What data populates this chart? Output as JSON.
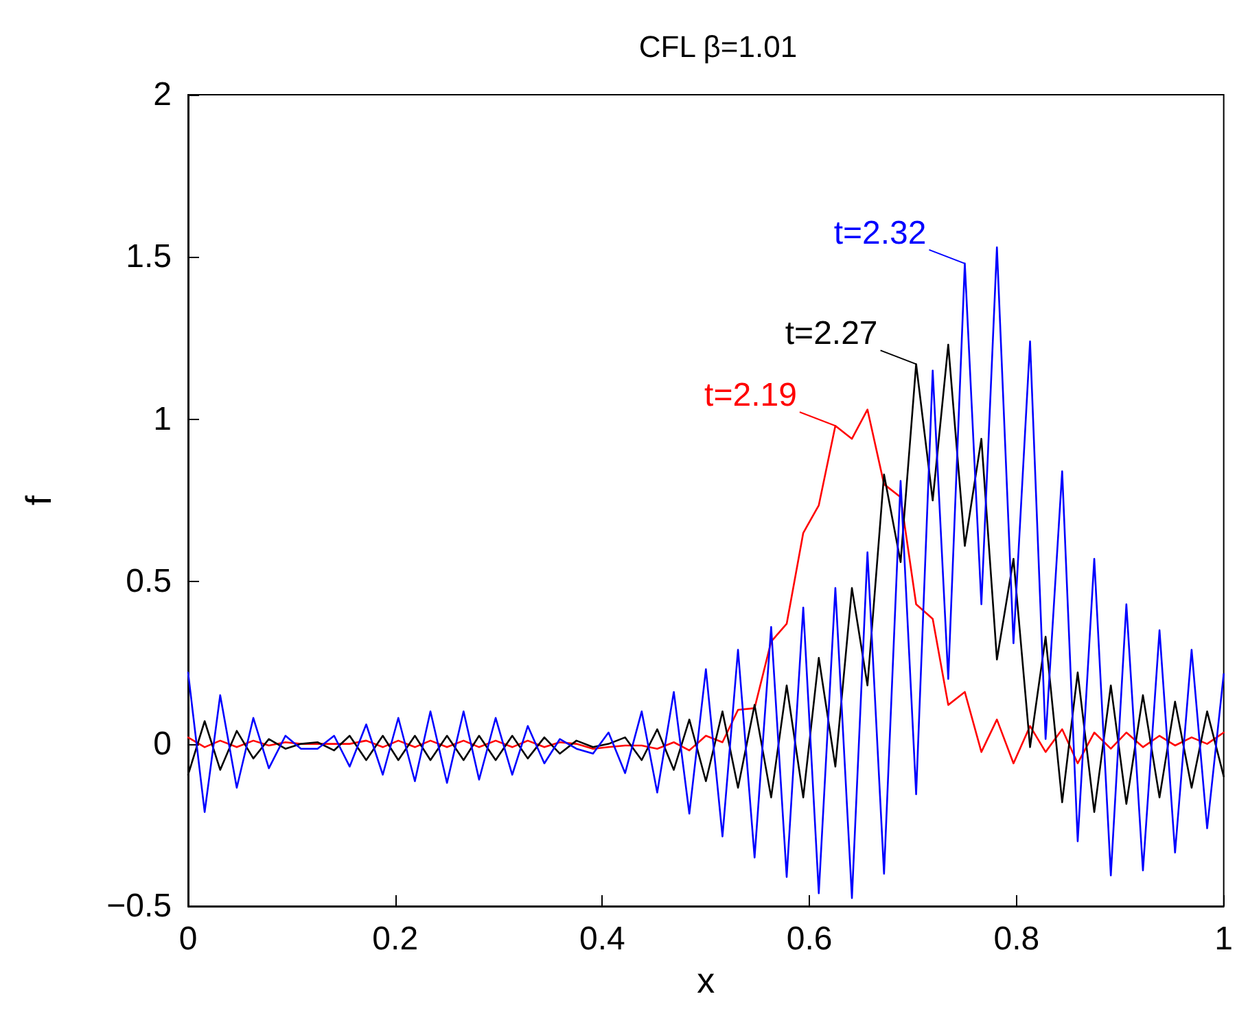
{
  "chart_data": {
    "type": "line",
    "title": "CFL β=1.01",
    "xlabel": "x",
    "ylabel": "f",
    "x": [
      0,
      0.016,
      0.031,
      0.047,
      0.063,
      0.078,
      0.094,
      0.109,
      0.125,
      0.141,
      0.156,
      0.172,
      0.188,
      0.203,
      0.219,
      0.234,
      0.25,
      0.266,
      0.281,
      0.297,
      0.313,
      0.328,
      0.344,
      0.359,
      0.375,
      0.391,
      0.406,
      0.422,
      0.438,
      0.453,
      0.469,
      0.484,
      0.5,
      0.516,
      0.531,
      0.547,
      0.563,
      0.578,
      0.594,
      0.609,
      0.625,
      0.641,
      0.656,
      0.672,
      0.688,
      0.703,
      0.719,
      0.734,
      0.75,
      0.766,
      0.781,
      0.797,
      0.813,
      0.828,
      0.844,
      0.859,
      0.875,
      0.891,
      0.906,
      0.922,
      0.938,
      0.953,
      0.969,
      0.984,
      1
    ],
    "series": [
      {
        "color": "#ff0000",
        "values": [
          0.02,
          -0.01,
          0.01,
          -0.01,
          0.01,
          -0.005,
          0.005,
          0,
          0,
          0,
          0,
          0.01,
          -0.01,
          0.01,
          -0.01,
          0.01,
          -0.01,
          0.01,
          -0.01,
          0.01,
          -0.01,
          0.01,
          -0.01,
          0.005,
          0,
          -0.015,
          -0.01,
          -0.005,
          -0.005,
          -0.015,
          0.005,
          -0.02,
          0.025,
          0.005,
          0.105,
          0.11,
          0.315,
          0.37,
          0.65,
          0.735,
          0.98,
          0.94,
          1.03,
          0.8,
          0.76,
          0.43,
          0.385,
          0.12,
          0.16,
          -0.025,
          0.075,
          -0.06,
          0.055,
          -0.025,
          0.045,
          -0.06,
          0.035,
          -0.015,
          0.035,
          -0.01,
          0.025,
          -0.005,
          0.02,
          0,
          0.035
        ]
      },
      {
        "color": "#000000",
        "values": [
          -0.095,
          0.07,
          -0.08,
          0.04,
          -0.045,
          0.015,
          -0.015,
          0,
          0.005,
          -0.02,
          0.025,
          -0.05,
          0.025,
          -0.05,
          0.025,
          -0.05,
          0.025,
          -0.05,
          0.025,
          -0.05,
          0.025,
          -0.045,
          0.02,
          -0.03,
          0.01,
          -0.01,
          0,
          0.02,
          -0.05,
          0.045,
          -0.08,
          0.075,
          -0.115,
          0.1,
          -0.135,
          0.12,
          -0.165,
          0.18,
          -0.165,
          0.265,
          -0.07,
          0.48,
          0.18,
          0.83,
          0.56,
          1.17,
          0.75,
          1.23,
          0.61,
          0.94,
          0.26,
          0.57,
          -0.01,
          0.33,
          -0.18,
          0.22,
          -0.21,
          0.18,
          -0.185,
          0.15,
          -0.165,
          0.13,
          -0.135,
          0.1,
          -0.1
        ]
      },
      {
        "color": "#0000ff",
        "values": [
          0.22,
          -0.21,
          0.15,
          -0.135,
          0.08,
          -0.075,
          0.025,
          -0.015,
          -0.015,
          0.025,
          -0.07,
          0.06,
          -0.095,
          0.08,
          -0.115,
          0.1,
          -0.12,
          0.1,
          -0.11,
          0.08,
          -0.095,
          0.055,
          -0.06,
          0.015,
          -0.015,
          -0.03,
          0.035,
          -0.09,
          0.1,
          -0.15,
          0.16,
          -0.215,
          0.23,
          -0.285,
          0.29,
          -0.35,
          0.36,
          -0.41,
          0.42,
          -0.46,
          0.48,
          -0.475,
          0.59,
          -0.4,
          0.81,
          -0.155,
          1.15,
          0.2,
          1.48,
          0.43,
          1.53,
          0.31,
          1.24,
          0.015,
          0.84,
          -0.3,
          0.57,
          -0.405,
          0.43,
          -0.39,
          0.35,
          -0.335,
          0.29,
          -0.26,
          0.215
        ]
      }
    ],
    "annotations": [
      {
        "text": "t=2.32",
        "x": 0.75,
        "y": 1.48
      },
      {
        "text": "t=2.27",
        "x": 0.703,
        "y": 1.17
      },
      {
        "text": "t=2.19",
        "x": 0.625,
        "y": 0.98
      }
    ],
    "xlim": [
      0,
      1
    ],
    "xticks": [
      0,
      0.2,
      0.4,
      0.6,
      0.8,
      1
    ],
    "ylim": [
      -0.5,
      2
    ],
    "yticks": [
      {
        "value": -0.5,
        "label": "−0.5"
      },
      0,
      0.5,
      1,
      1.5,
      2
    ]
  }
}
